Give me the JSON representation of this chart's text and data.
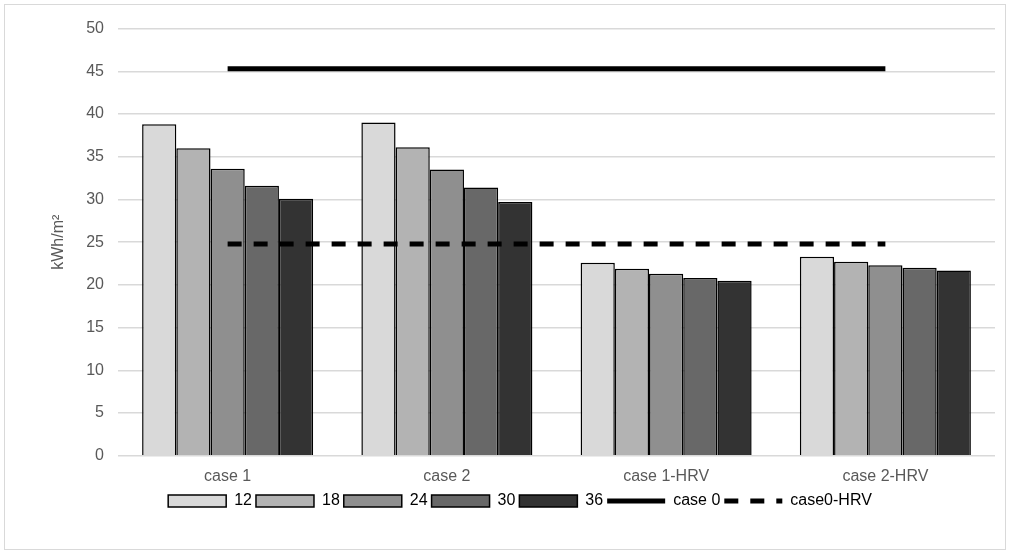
{
  "chart_data": {
    "type": "bar",
    "ylabel": "kWh/m²",
    "categories": [
      "case 1",
      "case 2",
      "case 1-HRV",
      "case 2-HRV"
    ],
    "series": [
      {
        "name": "12",
        "color": "#d9d9d9",
        "values": [
          38.8,
          39.0,
          22.6,
          23.3
        ]
      },
      {
        "name": "18",
        "color": "#b3b3b3",
        "values": [
          36.0,
          36.1,
          21.9,
          22.7
        ]
      },
      {
        "name": "24",
        "color": "#8f8f8f",
        "values": [
          33.6,
          33.5,
          21.3,
          22.3
        ]
      },
      {
        "name": "30",
        "color": "#686868",
        "values": [
          31.6,
          31.4,
          20.8,
          22.0
        ]
      },
      {
        "name": "36",
        "color": "#333333",
        "values": [
          30.1,
          29.7,
          20.5,
          21.7
        ]
      },
      {
        "name": "case 0",
        "type": "line",
        "color": "#000000",
        "line_style": "solid",
        "values": [
          45.3,
          45.3,
          45.3,
          45.3
        ]
      },
      {
        "name": "case0-HRV",
        "type": "line",
        "color": "#000000",
        "line_style": "dashed",
        "values": [
          24.8,
          24.8,
          24.8,
          24.8
        ]
      }
    ],
    "ylim": [
      0,
      50
    ],
    "yticks": [
      0,
      5,
      10,
      15,
      20,
      25,
      30,
      35,
      40,
      45,
      50
    ],
    "grid": "y",
    "legend": "bottom",
    "marker": "none"
  }
}
